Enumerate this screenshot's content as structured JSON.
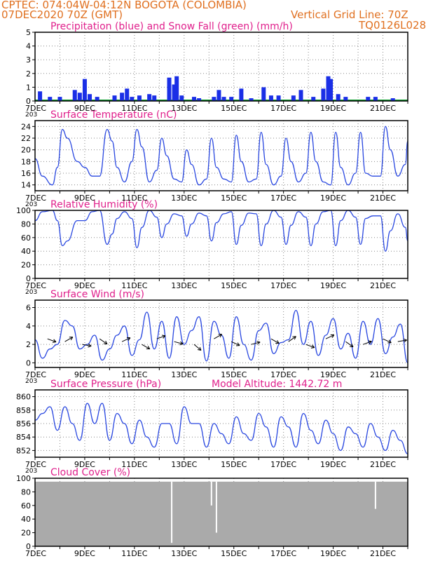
{
  "header": {
    "line1": "CPTEC:    074:04W-04:12N   BOGOTA (COLOMBIA)",
    "line2": "07DEC2020 70Z (GMT)",
    "grid_note": "Vertical Grid Line: 70Z",
    "code": "TQ0126L028"
  },
  "colors": {
    "precip": "#1a2fe6",
    "snow": "#10a030",
    "line": "#2a48e0",
    "cloud": "#aaaaaa",
    "title": "#e0208c",
    "header": "#e07020"
  },
  "x_axis": {
    "labels": [
      "7DEC",
      "9DEC",
      "11DEC",
      "13DEC",
      "15DEC",
      "17DEC",
      "19DEC",
      "21DEC"
    ],
    "stub": "203"
  },
  "panels": [
    {
      "id": "precip",
      "title": "Precipitation (blue) and Snow Fall (green) (mm/h)",
      "yticks": [
        "0",
        "1",
        "2",
        "3",
        "4",
        "5"
      ],
      "ylim": [
        0,
        5
      ]
    },
    {
      "id": "temp",
      "title": "Surface Temperature (nC)",
      "yticks": [
        "14",
        "16",
        "18",
        "20",
        "22",
        "24"
      ],
      "ylim": [
        13,
        25
      ]
    },
    {
      "id": "rh",
      "title": "Relative Humidity (%)",
      "yticks": [
        "0",
        "20",
        "40",
        "60",
        "80",
        "100"
      ],
      "ylim": [
        0,
        100
      ]
    },
    {
      "id": "wind",
      "title": "Surface Wind (m/s)",
      "yticks": [
        "0",
        "2",
        "4",
        "6"
      ],
      "ylim": [
        -0.5,
        6.8
      ]
    },
    {
      "id": "press",
      "title": "Surface Pressure (hPa)",
      "subtitle": "Model Altitude: 1442.72 m",
      "yticks": [
        "852",
        "854",
        "856",
        "858",
        "860"
      ],
      "ylim": [
        851,
        861
      ]
    },
    {
      "id": "cloud",
      "title": "Cloud Cover (%)",
      "yticks": [
        "0",
        "20",
        "40",
        "60",
        "80",
        "100"
      ],
      "ylim": [
        0,
        100
      ]
    }
  ],
  "chart_data": [
    {
      "type": "bar",
      "title": "Precipitation (blue) and Snow Fall (green) (mm/h)",
      "x": [
        7.2,
        7.6,
        8.0,
        8.6,
        8.8,
        9.0,
        9.2,
        9.5,
        10.2,
        10.5,
        10.7,
        10.9,
        11.2,
        11.6,
        11.8,
        12.4,
        12.6,
        12.7,
        12.9,
        13.4,
        13.6,
        14.2,
        14.4,
        14.6,
        14.9,
        15.3,
        15.7,
        16.2,
        16.5,
        16.8,
        17.4,
        17.7,
        18.2,
        18.6,
        18.8,
        18.9,
        19.2,
        19.5,
        20.4,
        20.7,
        21.4
      ],
      "values": [
        0.7,
        0.3,
        0.3,
        0.8,
        0.6,
        1.6,
        0.5,
        0.3,
        0.4,
        0.6,
        0.9,
        0.3,
        0.4,
        0.5,
        0.4,
        1.7,
        1.2,
        1.8,
        0.4,
        0.3,
        0.2,
        0.3,
        0.8,
        0.3,
        0.3,
        0.9,
        0.2,
        1.0,
        0.4,
        0.4,
        0.4,
        0.8,
        0.3,
        0.9,
        1.8,
        1.6,
        0.5,
        0.3,
        0.3,
        0.3,
        0.2
      ],
      "ylim": [
        0,
        5
      ]
    },
    {
      "type": "line",
      "title": "Surface Temperature (nC)",
      "x": [
        7.0,
        7.3,
        7.7,
        7.9,
        8.1,
        8.3,
        8.7,
        9.0,
        9.3,
        9.6,
        9.9,
        10.1,
        10.3,
        10.6,
        10.9,
        11.1,
        11.3,
        11.6,
        11.9,
        12.1,
        12.3,
        12.6,
        12.9,
        13.1,
        13.3,
        13.6,
        13.9,
        14.1,
        14.3,
        14.6,
        14.9,
        15.1,
        15.3,
        15.6,
        15.9,
        16.1,
        16.3,
        16.6,
        16.9,
        17.1,
        17.3,
        17.6,
        17.9,
        18.1,
        18.3,
        18.6,
        18.9,
        19.1,
        19.3,
        19.6,
        19.9,
        20.1,
        20.3,
        20.6,
        20.9,
        21.1,
        21.3,
        21.6,
        21.9,
        22.0
      ],
      "values": [
        18.5,
        15.5,
        14.0,
        17.0,
        23.5,
        22.0,
        18.0,
        17.0,
        15.5,
        15.5,
        23.5,
        21.5,
        17.0,
        14.5,
        18.0,
        23.5,
        20.5,
        14.5,
        16.5,
        22.0,
        19.0,
        15.0,
        14.5,
        20.0,
        17.5,
        14.0,
        15.0,
        22.0,
        17.0,
        15.0,
        14.5,
        22.5,
        18.0,
        14.5,
        15.0,
        23.0,
        17.5,
        14.0,
        15.5,
        22.0,
        18.0,
        14.5,
        16.0,
        23.0,
        18.0,
        14.5,
        14.0,
        23.0,
        17.0,
        14.0,
        16.0,
        23.0,
        16.0,
        15.5,
        15.5,
        24.0,
        20.0,
        15.5,
        17.5,
        21.5
      ],
      "ylim": [
        13,
        25
      ]
    },
    {
      "type": "line",
      "title": "Relative Humidity (%)",
      "x": [
        7.0,
        7.3,
        7.7,
        7.9,
        8.1,
        8.3,
        8.7,
        9.0,
        9.3,
        9.6,
        9.9,
        10.1,
        10.3,
        10.6,
        10.9,
        11.1,
        11.3,
        11.6,
        11.9,
        12.1,
        12.3,
        12.6,
        12.9,
        13.1,
        13.3,
        13.6,
        13.9,
        14.1,
        14.3,
        14.6,
        14.9,
        15.1,
        15.3,
        15.6,
        15.9,
        16.1,
        16.3,
        16.6,
        16.9,
        17.1,
        17.3,
        17.6,
        17.9,
        18.1,
        18.3,
        18.6,
        18.9,
        19.1,
        19.3,
        19.6,
        19.9,
        20.1,
        20.3,
        20.6,
        20.9,
        21.1,
        21.3,
        21.6,
        21.9,
        22.0
      ],
      "values": [
        85,
        98,
        100,
        85,
        48,
        55,
        85,
        85,
        98,
        100,
        50,
        65,
        88,
        98,
        88,
        45,
        75,
        100,
        90,
        60,
        80,
        95,
        92,
        62,
        80,
        96,
        92,
        55,
        82,
        95,
        98,
        50,
        78,
        96,
        95,
        48,
        80,
        100,
        90,
        50,
        78,
        98,
        90,
        48,
        80,
        98,
        100,
        48,
        85,
        100,
        90,
        50,
        88,
        92,
        92,
        40,
        70,
        95,
        75,
        55
      ],
      "ylim": [
        0,
        100
      ]
    },
    {
      "type": "line",
      "title": "Surface Wind (m/s)",
      "x": [
        7.0,
        7.3,
        7.6,
        7.9,
        8.2,
        8.5,
        8.8,
        9.1,
        9.4,
        9.7,
        10.0,
        10.3,
        10.6,
        10.9,
        11.2,
        11.5,
        11.8,
        12.1,
        12.4,
        12.7,
        13.0,
        13.3,
        13.6,
        13.9,
        14.2,
        14.5,
        14.8,
        15.1,
        15.4,
        15.7,
        16.0,
        16.3,
        16.6,
        16.9,
        17.2,
        17.5,
        17.8,
        18.1,
        18.4,
        18.7,
        19.0,
        19.3,
        19.6,
        19.9,
        20.2,
        20.5,
        20.8,
        21.1,
        21.4,
        21.7,
        22.0
      ],
      "values": [
        2.5,
        0.5,
        1.5,
        2.0,
        4.6,
        4.0,
        1.5,
        2.0,
        3.0,
        0.3,
        1.5,
        3.0,
        4.0,
        0.8,
        2.5,
        5.5,
        1.5,
        4.5,
        0.5,
        5.0,
        2.0,
        3.5,
        5.0,
        0.2,
        4.5,
        3.0,
        0.5,
        5.0,
        2.0,
        0.3,
        3.5,
        4.3,
        1.0,
        2.2,
        2.5,
        5.7,
        2.0,
        4.5,
        0.8,
        3.0,
        4.8,
        1.5,
        3.2,
        0.5,
        4.5,
        2.0,
        4.8,
        1.0,
        2.8,
        4.2,
        0.0
      ],
      "ylim": [
        -0.5,
        6.8
      ]
    },
    {
      "type": "line",
      "title": "Surface Pressure (hPa)",
      "x": [
        7.0,
        7.3,
        7.6,
        7.9,
        8.2,
        8.5,
        8.8,
        9.1,
        9.4,
        9.7,
        10.0,
        10.3,
        10.6,
        10.9,
        11.2,
        11.5,
        11.8,
        12.1,
        12.4,
        12.7,
        13.0,
        13.3,
        13.6,
        13.9,
        14.2,
        14.5,
        14.8,
        15.1,
        15.4,
        15.7,
        16.0,
        16.3,
        16.6,
        16.9,
        17.2,
        17.5,
        17.8,
        18.1,
        18.4,
        18.7,
        19.0,
        19.3,
        19.6,
        19.9,
        20.2,
        20.5,
        20.8,
        21.1,
        21.4,
        21.7,
        22.0
      ],
      "values": [
        856.5,
        857.5,
        858.5,
        855.0,
        858.5,
        856.0,
        853.5,
        859.0,
        856.0,
        859.0,
        853.5,
        857.5,
        856.0,
        853.0,
        856.5,
        854.0,
        852.5,
        856.0,
        856.0,
        853.0,
        858.5,
        856.0,
        856.0,
        852.5,
        856.0,
        854.5,
        853.0,
        857.0,
        854.5,
        853.5,
        857.5,
        855.5,
        852.5,
        857.0,
        855.5,
        852.5,
        857.5,
        855.0,
        853.0,
        856.5,
        854.5,
        852.0,
        855.5,
        854.5,
        852.5,
        856.0,
        854.0,
        852.0,
        855.0,
        853.5,
        851.5
      ],
      "ylim": [
        851,
        861
      ]
    },
    {
      "type": "bar",
      "title": "Cloud Cover (%)",
      "x_range": [
        7,
        22
      ],
      "typical_value": 95,
      "dips": [
        {
          "x": 12.5,
          "value": 5
        },
        {
          "x": 14.3,
          "value": 20
        },
        {
          "x": 14.1,
          "value": 60
        },
        {
          "x": 20.7,
          "value": 55
        }
      ],
      "ylim": [
        0,
        100
      ]
    }
  ]
}
